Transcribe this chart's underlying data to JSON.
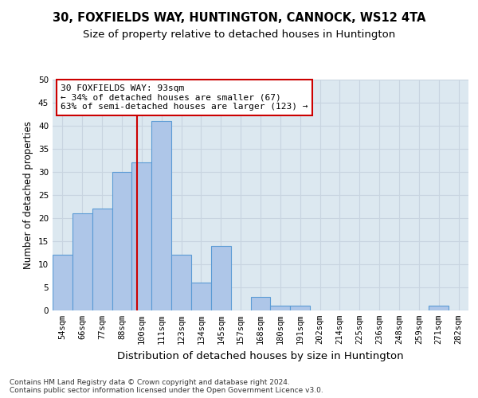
{
  "title1": "30, FOXFIELDS WAY, HUNTINGTON, CANNOCK, WS12 4TA",
  "title2": "Size of property relative to detached houses in Huntington",
  "xlabel": "Distribution of detached houses by size in Huntington",
  "ylabel": "Number of detached properties",
  "categories": [
    "54sqm",
    "66sqm",
    "77sqm",
    "88sqm",
    "100sqm",
    "111sqm",
    "123sqm",
    "134sqm",
    "145sqm",
    "157sqm",
    "168sqm",
    "180sqm",
    "191sqm",
    "202sqm",
    "214sqm",
    "225sqm",
    "236sqm",
    "248sqm",
    "259sqm",
    "271sqm",
    "282sqm"
  ],
  "values": [
    12,
    21,
    22,
    30,
    32,
    41,
    12,
    6,
    14,
    0,
    3,
    1,
    1,
    0,
    0,
    0,
    0,
    0,
    0,
    1,
    0
  ],
  "bar_color": "#aec6e8",
  "bar_edge_color": "#5b9bd5",
  "bar_linewidth": 0.8,
  "vline_x": 3.77,
  "vline_color": "#cc0000",
  "annotation_line1": "30 FOXFIELDS WAY: 93sqm",
  "annotation_line2": "← 34% of detached houses are smaller (67)",
  "annotation_line3": "63% of semi-detached houses are larger (123) →",
  "annotation_box_color": "#cc0000",
  "ylim": [
    0,
    50
  ],
  "yticks": [
    0,
    5,
    10,
    15,
    20,
    25,
    30,
    35,
    40,
    45,
    50
  ],
  "grid_color": "#c8d4e0",
  "bg_color": "#dce8f0",
  "footnote": "Contains HM Land Registry data © Crown copyright and database right 2024.\nContains public sector information licensed under the Open Government Licence v3.0.",
  "title1_fontsize": 10.5,
  "title2_fontsize": 9.5,
  "xlabel_fontsize": 9.5,
  "ylabel_fontsize": 8.5,
  "tick_fontsize": 7.5,
  "annotation_fontsize": 8,
  "footnote_fontsize": 6.5
}
